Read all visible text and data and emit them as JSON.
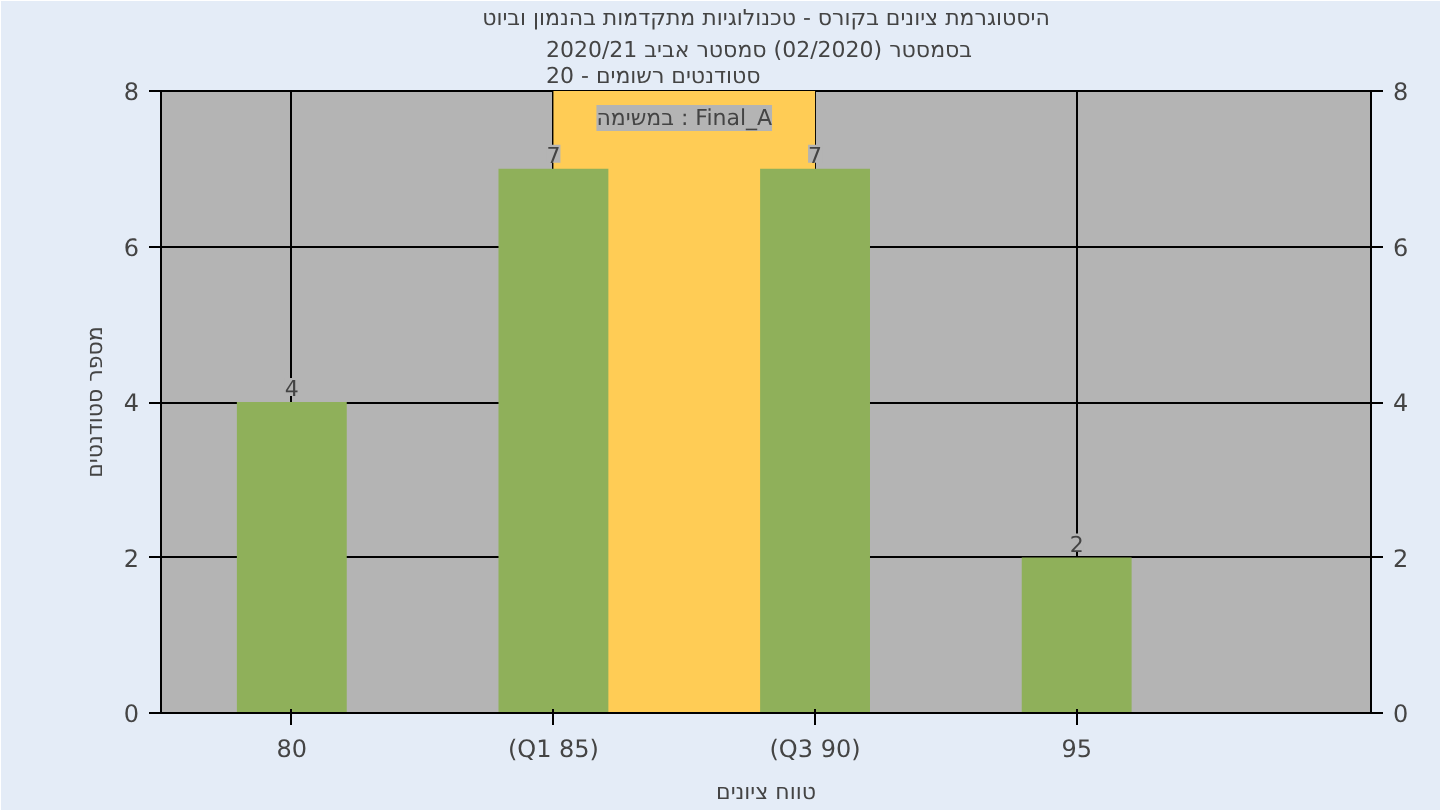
{
  "chart_data": {
    "type": "bar",
    "title": "היסטוגרמת ציונים בקורס - טכנולוגיות מתקדמות בהנמון וביוט",
    "subtitle": "בסמסטר  (02/2020)  סמסטר אביב 2020/21\nסטודנטים רשומים - 20",
    "xlabel": "טווח ציונים",
    "ylabel": "מספר סטודנטים",
    "annotations": [
      "במשימה : Final_A"
    ],
    "categories": [
      "80",
      "(Q1 85)",
      "(Q3 90)",
      "95"
    ],
    "series": [
      {
        "color": "#8fb05a",
        "values": [
          4,
          7,
          7,
          2
        ]
      }
    ],
    "bands": [
      {
        "axis": "x",
        "from": "(Q1 85)",
        "to": "(Q3 90)",
        "color": "#ffcc55"
      }
    ],
    "ylim": [
      0,
      8
    ],
    "yticks": [
      0,
      2,
      4,
      6,
      8
    ],
    "y2lim": [
      0,
      8
    ],
    "y2ticks": [
      0,
      2,
      4,
      6,
      8
    ],
    "data_labels": true,
    "grid": true
  }
}
